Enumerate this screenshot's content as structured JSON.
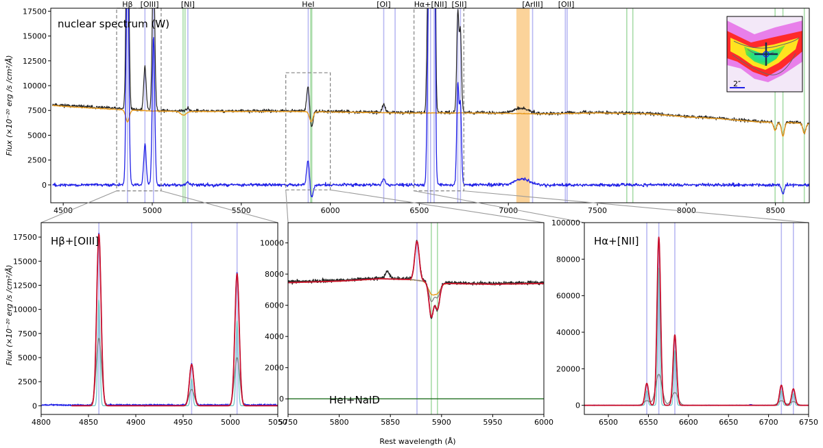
{
  "figure": {
    "ylabel_top": "Flux (×10⁻²⁰ erg /s /cm²/Å)",
    "ylabel_bottom": "Flux (×10⁻²⁰ erg /s /cm²/Å)",
    "xlabel_bottom": "Rest wavelength (Å)"
  },
  "colors": {
    "observed": "#222222",
    "stellar_fit": "#e89a1c",
    "residual": "#1f1fe6",
    "total_fit": "#c8102e",
    "component_grey": "#808080",
    "component_teal": "#6fc8c8",
    "emission_line": "#b8b8f2",
    "absorption_line": "#a8dca8",
    "masked_region": "#fbd39a",
    "zoom_box": "#808080"
  },
  "inset": {
    "scale_label": "2″"
  },
  "chart_data": [
    {
      "id": "top",
      "type": "line",
      "title": "nuclear spectrum (W)",
      "xlim": [
        4430,
        8690
      ],
      "ylim": [
        -1800,
        17800
      ],
      "xticks": [
        4500,
        5000,
        5500,
        6000,
        6500,
        7000,
        7500,
        8000,
        8500
      ],
      "yticks": [
        0,
        2500,
        5000,
        7500,
        10000,
        12500,
        15000,
        17500
      ],
      "line_labels": [
        {
          "text": "Hβ",
          "x": 4861
        },
        {
          "text": "[OIII]",
          "x": 4985
        },
        {
          "text": "[NI]",
          "x": 5200
        },
        {
          "text": "HeI",
          "x": 5876
        },
        {
          "text": "[OI]",
          "x": 6300
        },
        {
          "text": "Hα+[NII]",
          "x": 6563
        },
        {
          "text": "[SII]",
          "x": 6724
        },
        {
          "text": "[ArIII]",
          "x": 7136
        },
        {
          "text": "[OII]",
          "x": 7325
        }
      ],
      "emission_lines": [
        4861,
        4959,
        5007,
        5200,
        5876,
        6300,
        6364,
        6548,
        6563,
        6583,
        6716,
        6731,
        7136,
        7320,
        7330
      ],
      "absorption_lines": [
        5173,
        5184,
        5890,
        5896,
        7665,
        7699,
        8498,
        8542,
        8662
      ],
      "masked_regions": [
        [
          7045,
          7120
        ]
      ],
      "zoom_boxes": [
        [
          4800,
          5050,
          -600,
          17800
        ],
        [
          5750,
          6000,
          -500,
          11300
        ],
        [
          6470,
          6750,
          -600,
          17800
        ]
      ],
      "series": [
        {
          "key": "observed",
          "continuum": [
            [
              4440,
              8100
            ],
            [
              4600,
              7900
            ],
            [
              4800,
              7700
            ],
            [
              5000,
              7500
            ],
            [
              5200,
              7450
            ],
            [
              5500,
              7450
            ],
            [
              5800,
              7450
            ],
            [
              6000,
              7400
            ],
            [
              6200,
              7350
            ],
            [
              6400,
              7300
            ],
            [
              6600,
              7300
            ],
            [
              6800,
              7300
            ],
            [
              7000,
              7250
            ],
            [
              7200,
              7200
            ],
            [
              7500,
              7300
            ],
            [
              7800,
              7200
            ],
            [
              8000,
              6900
            ],
            [
              8200,
              6700
            ],
            [
              8400,
              6400
            ],
            [
              8600,
              6300
            ],
            [
              8690,
              6200
            ]
          ],
          "noise": 260,
          "features": [
            [
              4861,
              26000,
              7
            ],
            [
              4959,
              4300,
              7
            ],
            [
              5007,
              15000,
              7
            ],
            [
              5200,
              300,
              8
            ],
            [
              5876,
              2700,
              8
            ],
            [
              5893,
              -1800,
              9
            ],
            [
              6300,
              800,
              8
            ],
            [
              6548,
              11000,
              6
            ],
            [
              6563,
              90000,
              6
            ],
            [
              6583,
              36000,
              6
            ],
            [
              6716,
              10000,
              6
            ],
            [
              6731,
              8000,
              6
            ],
            [
              7075,
              500,
              40
            ],
            [
              8498,
              -800,
              8
            ],
            [
              8542,
              -1400,
              8
            ],
            [
              8662,
              -1000,
              8
            ]
          ]
        },
        {
          "key": "stellar_fit",
          "continuum": [
            [
              4440,
              8000
            ],
            [
              4600,
              7800
            ],
            [
              4800,
              7600
            ],
            [
              5000,
              7450
            ],
            [
              5200,
              7400
            ],
            [
              5500,
              7400
            ],
            [
              5800,
              7400
            ],
            [
              6000,
              7350
            ],
            [
              6200,
              7300
            ],
            [
              6400,
              7250
            ],
            [
              6600,
              7250
            ],
            [
              6800,
              7250
            ],
            [
              7000,
              7200
            ],
            [
              7200,
              7150
            ],
            [
              7500,
              7250
            ],
            [
              7800,
              7150
            ],
            [
              8000,
              6850
            ],
            [
              8200,
              6650
            ],
            [
              8400,
              6350
            ],
            [
              8600,
              6250
            ],
            [
              8690,
              6150
            ]
          ],
          "noise": 60,
          "features": [
            [
              4861,
              -1200,
              10
            ],
            [
              5175,
              -400,
              15
            ],
            [
              5893,
              -1000,
              10
            ],
            [
              8498,
              -800,
              8
            ],
            [
              8542,
              -1400,
              8
            ],
            [
              8662,
              -1000,
              8
            ]
          ]
        },
        {
          "key": "residual",
          "continuum": [
            [
              4440,
              0
            ],
            [
              8690,
              0
            ]
          ],
          "noise": 250,
          "features": [
            [
              4861,
              25000,
              7
            ],
            [
              4959,
              4100,
              7
            ],
            [
              5007,
              15000,
              7
            ],
            [
              5200,
              250,
              8
            ],
            [
              5876,
              2700,
              8
            ],
            [
              5893,
              -1500,
              9
            ],
            [
              6300,
              700,
              8
            ],
            [
              6548,
              11000,
              6
            ],
            [
              6563,
              90000,
              6
            ],
            [
              6583,
              36000,
              6
            ],
            [
              6716,
              10000,
              6
            ],
            [
              6731,
              8000,
              6
            ],
            [
              7075,
              600,
              40
            ],
            [
              8542,
              -900,
              8
            ]
          ]
        }
      ]
    },
    {
      "id": "hb_oiii",
      "type": "line",
      "title": "Hβ+[OIII]",
      "xlim": [
        4800,
        5050
      ],
      "ylim": [
        -900,
        19000
      ],
      "xticks": [
        4800,
        4850,
        4900,
        4950,
        5000,
        5050
      ],
      "yticks": [
        0,
        2500,
        5000,
        7500,
        10000,
        12500,
        15000,
        17500
      ],
      "emission_lines": [
        4861,
        4959,
        5007
      ],
      "absorption_lines": [],
      "series": [
        {
          "key": "residual",
          "range": [
            4800,
            5050
          ],
          "base": 80,
          "noise": 140,
          "peaks": [
            [
              4861,
              17800,
              2.3
            ],
            [
              4959,
              4300,
              2.3
            ],
            [
              5007,
              13700,
              2.3
            ]
          ]
        },
        {
          "key": "component_teal",
          "range": [
            4832,
            5050
          ],
          "base": 0,
          "noise": 0,
          "peaks": [
            [
              4861,
              11000,
              1.2
            ],
            [
              4959,
              2800,
              1.2
            ],
            [
              5007,
              8800,
              1.2
            ]
          ]
        },
        {
          "key": "component_grey",
          "range": [
            4832,
            5050
          ],
          "base": 0,
          "noise": 0,
          "peaks": [
            [
              4861,
              7000,
              2.8
            ],
            [
              4959,
              1700,
              2.8
            ],
            [
              5007,
              5000,
              2.8
            ]
          ]
        },
        {
          "key": "total_fit",
          "range": [
            4832,
            5050
          ],
          "base": 0,
          "noise": 0,
          "peaks": [
            [
              4861,
              17800,
              2.3
            ],
            [
              4959,
              4300,
              2.3
            ],
            [
              5007,
              13700,
              2.3
            ]
          ]
        }
      ]
    },
    {
      "id": "hei_naid",
      "type": "line",
      "title": "HeI+NaID",
      "xlim": [
        5750,
        6000
      ],
      "ylim": [
        -1000,
        11300
      ],
      "xticks": [
        5750,
        5800,
        5850,
        5900,
        5950,
        6000
      ],
      "yticks": [
        0,
        2000,
        4000,
        6000,
        8000,
        10000
      ],
      "emission_lines": [
        5876
      ],
      "absorption_lines": [
        5890,
        5896
      ],
      "series": [
        {
          "key": "observed",
          "range": [
            5750,
            6000
          ],
          "continuum": [
            [
              5750,
              7500
            ],
            [
              5800,
              7600
            ],
            [
              5840,
              7750
            ],
            [
              5870,
              7700
            ],
            [
              5900,
              7450
            ],
            [
              5950,
              7400
            ],
            [
              6000,
              7450
            ]
          ],
          "noise": 180,
          "features": [
            [
              5847,
              400,
              2
            ],
            [
              5876,
              2500,
              2.2
            ],
            [
              5890,
              -2300,
              2.2
            ],
            [
              5896,
              -1700,
              2.2
            ]
          ]
        },
        {
          "key": "stellar_fit",
          "range": [
            5750,
            6000
          ],
          "continuum": [
            [
              5750,
              7450
            ],
            [
              5800,
              7550
            ],
            [
              5840,
              7700
            ],
            [
              5870,
              7650
            ],
            [
              5900,
              7400
            ],
            [
              5950,
              7350
            ],
            [
              6000,
              7400
            ]
          ],
          "noise": 40,
          "features": [
            [
              5890,
              -700,
              3
            ],
            [
              5896,
              -600,
              3
            ]
          ]
        },
        {
          "key": "component_grey",
          "range": [
            5750,
            6000
          ],
          "continuum": [
            [
              5750,
              7450
            ],
            [
              5800,
              7550
            ],
            [
              5840,
              7700
            ],
            [
              5870,
              7650
            ],
            [
              5900,
              7400
            ],
            [
              5950,
              7350
            ],
            [
              6000,
              7400
            ]
          ],
          "noise": 0,
          "features": [
            [
              5890,
              -1200,
              2.4
            ],
            [
              5896,
              -900,
              2.4
            ]
          ]
        },
        {
          "key": "residual_zero",
          "range": [
            5750,
            6000
          ],
          "continuum": [
            [
              5750,
              0
            ],
            [
              6000,
              0
            ]
          ],
          "noise": 0,
          "features": []
        },
        {
          "key": "total_fit",
          "range": [
            5750,
            6000
          ],
          "continuum": [
            [
              5750,
              7450
            ],
            [
              5800,
              7550
            ],
            [
              5840,
              7700
            ],
            [
              5870,
              7650
            ],
            [
              5900,
              7400
            ],
            [
              5950,
              7350
            ],
            [
              6000,
              7400
            ]
          ],
          "noise": 0,
          "features": [
            [
              5876,
              2500,
              2.2
            ],
            [
              5890,
              -2200,
              2.2
            ],
            [
              5896,
              -1650,
              2.2
            ]
          ]
        }
      ]
    },
    {
      "id": "ha_nii",
      "type": "line",
      "title": "Hα+[NII]",
      "xlim": [
        6470,
        6750
      ],
      "ylim": [
        -5000,
        100000
      ],
      "xticks": [
        6500,
        6550,
        6600,
        6650,
        6700,
        6750
      ],
      "yticks": [
        0,
        20000,
        40000,
        60000,
        80000,
        100000
      ],
      "emission_lines": [
        6548,
        6563,
        6583,
        6716,
        6731
      ],
      "absorption_lines": [],
      "series": [
        {
          "key": "residual",
          "range": [
            6470,
            6750
          ],
          "base": 0,
          "noise": 200,
          "peaks": [
            [
              6548,
              12000,
              2.2
            ],
            [
              6563,
              92000,
              2.2
            ],
            [
              6583,
              38500,
              2.2
            ],
            [
              6716,
              11000,
              2.2
            ],
            [
              6731,
              9000,
              2.2
            ],
            [
              6678,
              400,
              1.5
            ]
          ]
        },
        {
          "key": "component_teal",
          "range": [
            6470,
            6750
          ],
          "base": 0,
          "noise": 0,
          "peaks": [
            [
              6548,
              8000,
              1.3
            ],
            [
              6563,
              75000,
              1.3
            ],
            [
              6583,
              30000,
              1.3
            ],
            [
              6716,
              8000,
              1.3
            ],
            [
              6731,
              6500,
              1.3
            ]
          ]
        },
        {
          "key": "component_grey",
          "range": [
            6470,
            6750
          ],
          "base": 0,
          "noise": 0,
          "peaks": [
            [
              6548,
              2500,
              4
            ],
            [
              6563,
              17000,
              4
            ],
            [
              6583,
              7000,
              4
            ],
            [
              6716,
              2500,
              4
            ],
            [
              6731,
              2000,
              4
            ]
          ]
        },
        {
          "key": "total_fit",
          "range": [
            6470,
            6750
          ],
          "base": 0,
          "noise": 0,
          "peaks": [
            [
              6548,
              12000,
              2.2
            ],
            [
              6563,
              92000,
              2.2
            ],
            [
              6583,
              38500,
              2.2
            ],
            [
              6716,
              11000,
              2.2
            ],
            [
              6731,
              9000,
              2.2
            ]
          ]
        }
      ]
    }
  ]
}
